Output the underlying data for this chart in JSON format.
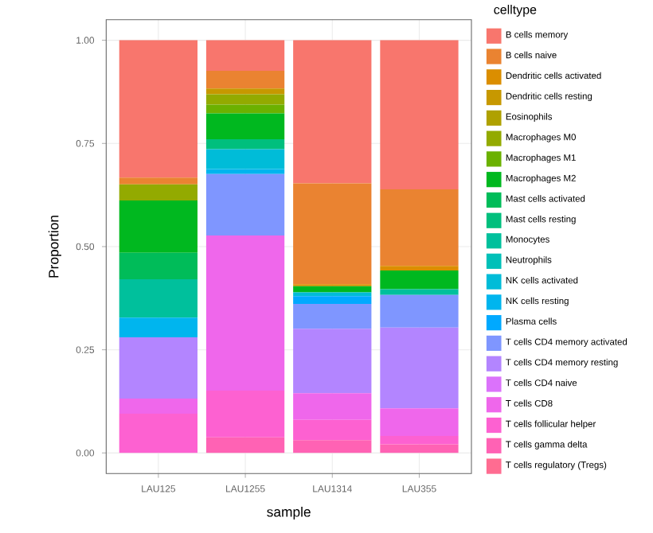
{
  "chart_data": {
    "type": "bar",
    "stacked": true,
    "xlabel": "sample",
    "ylabel": "Proportion",
    "legend_title": "celltype",
    "legend": "right",
    "grid": true,
    "categories": [
      "LAU125",
      "LAU1255",
      "LAU1314",
      "LAU355"
    ],
    "ylim": [
      0,
      1
    ],
    "yticks": [
      {
        "value": 0,
        "label": "0.00"
      },
      {
        "value": 0.25,
        "label": "0.25"
      },
      {
        "value": 0.5,
        "label": "0.50"
      },
      {
        "value": 0.75,
        "label": "0.75"
      },
      {
        "value": 1,
        "label": "1.00"
      }
    ],
    "series": [
      {
        "name": "T cells regulatory (Tregs)",
        "color": "#ff6c91",
        "values": [
          0,
          0,
          0,
          0
        ]
      },
      {
        "name": "T cells gamma delta",
        "color": "#ff62b4",
        "values": [
          0,
          0.038,
          0.031,
          0.021
        ]
      },
      {
        "name": "T cells follicular helper",
        "color": "#fd61d1",
        "values": [
          0.095,
          0.113,
          0.049,
          0.02
        ]
      },
      {
        "name": "T cells CD8",
        "color": "#ef67eb",
        "values": [
          0.037,
          0.376,
          0.065,
          0.067
        ]
      },
      {
        "name": "T cells CD4 naive",
        "color": "#db72fb",
        "values": [
          0,
          0,
          0,
          0
        ]
      },
      {
        "name": "T cells CD4 memory resting",
        "color": "#b385ff",
        "values": [
          0.148,
          0,
          0.156,
          0.196
        ]
      },
      {
        "name": "T cells CD4 memory activated",
        "color": "#7f96ff",
        "values": [
          0,
          0.149,
          0.06,
          0.079
        ]
      },
      {
        "name": "Plasma cells",
        "color": "#00a9ff",
        "values": [
          0,
          0,
          0.019,
          0
        ]
      },
      {
        "name": "NK cells resting",
        "color": "#00b5ee",
        "values": [
          0.048,
          0.012,
          0,
          0
        ]
      },
      {
        "name": "NK cells activated",
        "color": "#00bcd8",
        "values": [
          0,
          0.048,
          0.009,
          0
        ]
      },
      {
        "name": "Neutrophils",
        "color": "#00c0b8",
        "values": [
          0,
          0,
          0,
          0
        ]
      },
      {
        "name": "Monocytes",
        "color": "#00c09c",
        "values": [
          0.093,
          0,
          0,
          0.014
        ]
      },
      {
        "name": "Mast cells resting",
        "color": "#00bf7d",
        "values": [
          0,
          0.024,
          0,
          0
        ]
      },
      {
        "name": "Mast cells activated",
        "color": "#00bc59",
        "values": [
          0.064,
          0,
          0,
          0
        ]
      },
      {
        "name": "Macrophages M2",
        "color": "#00b81f",
        "values": [
          0.127,
          0.063,
          0.015,
          0.045
        ]
      },
      {
        "name": "Macrophages M1",
        "color": "#6bb100",
        "values": [
          0,
          0.021,
          0,
          0
        ]
      },
      {
        "name": "Macrophages M0",
        "color": "#93aa00",
        "values": [
          0.039,
          0.025,
          0,
          0
        ]
      },
      {
        "name": "Eosinophils",
        "color": "#afa100",
        "values": [
          0,
          0,
          0,
          0
        ]
      },
      {
        "name": "Dendritic cells resting",
        "color": "#c79800",
        "values": [
          0,
          0.014,
          0,
          0
        ]
      },
      {
        "name": "Dendritic cells activated",
        "color": "#db8e00",
        "values": [
          0,
          0,
          0.005,
          0.011
        ]
      },
      {
        "name": "B cells naive",
        "color": "#ea8331",
        "values": [
          0.016,
          0.043,
          0.244,
          0.186
        ]
      },
      {
        "name": "B cells memory",
        "color": "#f8766d",
        "values": [
          0.333,
          0.074,
          0.347,
          0.361
        ]
      }
    ]
  }
}
